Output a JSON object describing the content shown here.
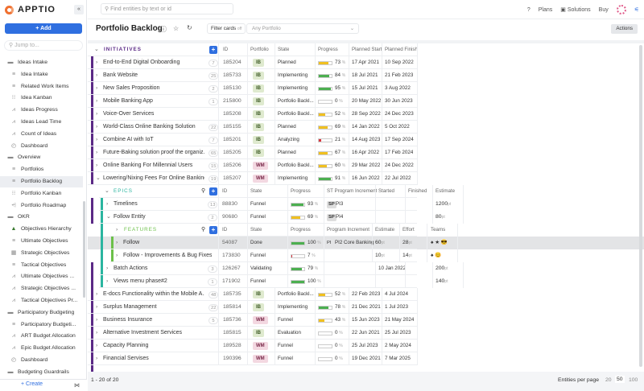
{
  "app": {
    "brand": "APPTIO",
    "add_label": "+ Add",
    "jump_placeholder": "Jump to...",
    "create_label": "+ Create",
    "search_placeholder": "Find entities by text or id"
  },
  "topnav": {
    "help": "?",
    "plans": "Plans",
    "solutions": "Solutions",
    "buy": "Buy"
  },
  "sidebar": {
    "items": [
      {
        "label": "Ideas Intake",
        "icon": "folder",
        "level": 0
      },
      {
        "label": "Idea Intake",
        "icon": "list",
        "level": 1
      },
      {
        "label": "Related Work Items",
        "icon": "list",
        "level": 1
      },
      {
        "label": "Idea Kanban",
        "icon": "kanban",
        "level": 1
      },
      {
        "label": "Ideas Progress",
        "icon": "chart",
        "level": 1
      },
      {
        "label": "Ideas Lead Time",
        "icon": "chart",
        "level": 1
      },
      {
        "label": "Count of Ideas",
        "icon": "chart",
        "level": 1
      },
      {
        "label": "Dashboard",
        "icon": "dashboard",
        "level": 1
      },
      {
        "label": "Overview",
        "icon": "folder",
        "level": 0
      },
      {
        "label": "Portfolios",
        "icon": "list",
        "level": 1
      },
      {
        "label": "Portfolio Backlog",
        "icon": "list",
        "level": 1,
        "selected": true
      },
      {
        "label": "Portfolio Kanban",
        "icon": "kanban",
        "level": 1
      },
      {
        "label": "Portfolio Roadmap",
        "icon": "roadmap",
        "level": 1
      },
      {
        "label": "OKR",
        "icon": "folder",
        "level": 0
      },
      {
        "label": "Objectives Hierarchy",
        "icon": "hierarchy",
        "level": 1
      },
      {
        "label": "Ultimate Objectives",
        "icon": "list",
        "level": 1
      },
      {
        "label": "Strategic Objectives",
        "icon": "grid",
        "level": 1
      },
      {
        "label": "Tactical Objectives",
        "icon": "list",
        "level": 1
      },
      {
        "label": "Ultimate Objectives ...",
        "icon": "chart",
        "level": 1
      },
      {
        "label": "Strategic Objectives ...",
        "icon": "chart",
        "level": 1
      },
      {
        "label": "Tactical Objectives Pr...",
        "icon": "chart",
        "level": 1
      },
      {
        "label": "Participatory Budgeting",
        "icon": "folder",
        "level": 0
      },
      {
        "label": "Participatory Budgeti...",
        "icon": "list",
        "level": 1
      },
      {
        "label": "ART Budget Allocation",
        "icon": "chart",
        "level": 1
      },
      {
        "label": "Epic Budget Allocation",
        "icon": "chart",
        "level": 1
      },
      {
        "label": "Dashboard",
        "icon": "dashboard",
        "level": 1
      },
      {
        "label": "Budgeting Guardrails",
        "icon": "folder",
        "level": 0
      }
    ]
  },
  "page": {
    "title": "Portfolio Backlog",
    "filter_label": "Filter cards",
    "filter_state": "off",
    "portfolio_placeholder": "Any Portfolio",
    "actions_label": "Actions"
  },
  "colors": {
    "accent": "#2f6fe0",
    "progress_high": "#4caf50",
    "progress_mid": "#f0c020",
    "progress_low": "#d9363e",
    "initiative_bar": "#5b2a86",
    "epic_bar": "#2bb5a0",
    "feature_bar": "#6cc04a"
  },
  "initiatives": {
    "title": "INITIATIVES",
    "columns": [
      "ID",
      "Portfolio",
      "State",
      "Progress",
      "Planned Start",
      "Planned Finish"
    ],
    "rows_before": [
      {
        "name": "End-to-End Digital Onboarding",
        "count": "7",
        "id": "185204",
        "portfolio": "IB",
        "state": "Planned",
        "progress": 73,
        "start": "17 Apr 2021",
        "finish": "10 Sep 2022"
      },
      {
        "name": "Bank Website",
        "count": "25",
        "id": "185733",
        "portfolio": "IB",
        "state": "Implementing",
        "progress": 84,
        "start": "18 Jul 2021",
        "finish": "21 Feb 2023"
      },
      {
        "name": "New Sales Proposition",
        "count": "2",
        "id": "185130",
        "portfolio": "IB",
        "state": "Implementing",
        "progress": 95,
        "start": "15 Jul 2021",
        "finish": "3 Aug 2022"
      },
      {
        "name": "Mobile Banking App",
        "count": "1",
        "id": "215800",
        "portfolio": "IB",
        "state": "Portfolio Backl...",
        "progress": 0,
        "start": "20 May 2022",
        "finish": "30 Jun 2023"
      },
      {
        "name": "Voice-Over Services",
        "count": "",
        "id": "185208",
        "portfolio": "IB",
        "state": "Portfolio Backl...",
        "progress": 52,
        "start": "28 Sep 2022",
        "finish": "24 Dec 2023"
      },
      {
        "name": "World-Class Online Banking Solution",
        "count": "22",
        "id": "185155",
        "portfolio": "IB",
        "state": "Planned",
        "progress": 69,
        "start": "14 Jan 2022",
        "finish": "5 Oct 2022"
      },
      {
        "name": "Combine AI with IoT",
        "count": "7",
        "id": "185201",
        "portfolio": "IB",
        "state": "Analyzing",
        "progress": 21,
        "start": "14 Aug 2023",
        "finish": "17 Sep 2024"
      },
      {
        "name": "Future-Baking solution proof the organiz...",
        "count": "65",
        "id": "185205",
        "portfolio": "IB",
        "state": "Planned",
        "progress": 67,
        "start": "16 Apr 2022",
        "finish": "17 Feb 2024"
      },
      {
        "name": "Online Banking For Millennial Users",
        "count": "15",
        "id": "185206",
        "portfolio": "WM",
        "state": "Portfolio Backl...",
        "progress": 60,
        "start": "29 Mar 2022",
        "finish": "24 Dec 2022"
      },
      {
        "name": "Lowering/Nixing Fees For Online Banking",
        "count": "19",
        "id": "185207",
        "portfolio": "WM",
        "state": "Implementing",
        "progress": 91,
        "start": "16 Jun 2022",
        "finish": "22 Jul 2022",
        "expanded": true
      }
    ],
    "rows_after": [
      {
        "name": "E-docs Functionality within the Mobile A...",
        "count": "48",
        "id": "185735",
        "portfolio": "IB",
        "state": "Portfolio Backl...",
        "progress": 52,
        "start": "22 Feb 2023",
        "finish": "4 Jul 2024"
      },
      {
        "name": "Surplus Management",
        "count": "22",
        "id": "185814",
        "portfolio": "IB",
        "state": "Implementing",
        "progress": 78,
        "start": "21 Dec 2021",
        "finish": "1 Jul 2023"
      },
      {
        "name": "Business Insurance",
        "count": "5",
        "id": "185736",
        "portfolio": "WM",
        "state": "Funnel",
        "progress": 43,
        "start": "15 Jun 2023",
        "finish": "21 May 2024"
      },
      {
        "name": "Alternative Investment Services",
        "count": "",
        "id": "185815",
        "portfolio": "IB",
        "state": "Evaluation",
        "progress": 0,
        "start": "22 Jun 2021",
        "finish": "25 Jul 2023"
      },
      {
        "name": "Capacity Planning",
        "count": "",
        "id": "189528",
        "portfolio": "WM",
        "state": "Funnel",
        "progress": 0,
        "start": "25 Jul 2023",
        "finish": "2 May 2024"
      },
      {
        "name": "Financial Servises",
        "count": "",
        "id": "190396",
        "portfolio": "WM",
        "state": "Funnel",
        "progress": 0,
        "start": "19 Dec 2021",
        "finish": "7 Mar 2025"
      }
    ]
  },
  "epics": {
    "title": "EPICS",
    "columns": [
      "ID",
      "State",
      "Progress",
      "ST Program Increment",
      "Started",
      "Finished",
      "Estimate"
    ],
    "rows": [
      {
        "name": "Timelines",
        "count": "13",
        "id": "88830",
        "state": "Funnel",
        "progress": 93,
        "pi_tag": "SP",
        "pi": "PI3",
        "started": "",
        "finished": "",
        "estimate": "1200",
        "unit": "pt"
      },
      {
        "name": "Follow Entity",
        "count": "2",
        "id": "90680",
        "state": "Funnel",
        "progress": 69,
        "pi_tag": "SP",
        "pi": "PI4",
        "started": "",
        "finished": "",
        "estimate": "80",
        "unit": "pt",
        "expanded": true
      },
      {
        "name": "Batch Actions",
        "count": "3",
        "id": "126267",
        "state": "Validating",
        "progress": 79,
        "pi_tag": "",
        "pi": "",
        "started": "10 Jan 2022",
        "finished": "",
        "estimate": "200",
        "unit": "pt"
      },
      {
        "name": "Views menu phase#2",
        "count": "1",
        "id": "171902",
        "state": "Funnel",
        "progress": 100,
        "pi_tag": "",
        "pi": "",
        "started": "",
        "finished": "",
        "estimate": "140",
        "unit": "pt"
      }
    ]
  },
  "features": {
    "title": "FEATURES",
    "columns": [
      "ID",
      "State",
      "Progress",
      "Program Increment",
      "Estimate",
      "Effort",
      "Teams"
    ],
    "rows": [
      {
        "name": "Follow",
        "id": "54087",
        "state": "Done",
        "progress": 100,
        "pi_tag": "PI",
        "pi": "PI2 Core Banking",
        "estimate": "60",
        "effort": "28",
        "unit": "pt",
        "teams": "♠ ★ 😎",
        "selected": true
      },
      {
        "name": "Follow - Improvements & Bug Fixes",
        "id": "173830",
        "state": "Funnel",
        "progress": 7,
        "pi_tag": "",
        "pi": "",
        "estimate": "10",
        "effort": "14",
        "unit": "pt",
        "teams": "♠ 😊"
      }
    ]
  },
  "footer": {
    "range": "1 - 20 of 20",
    "per_page_label": "Entities per page",
    "per_page_options": [
      "20",
      "50",
      "100"
    ],
    "per_page_selected": "50"
  }
}
